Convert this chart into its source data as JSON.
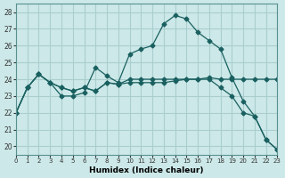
{
  "xlabel": "Humidex (Indice chaleur)",
  "ylabel": "",
  "xlim": [
    0,
    23
  ],
  "ylim": [
    19.5,
    28.5
  ],
  "yticks": [
    20,
    21,
    22,
    23,
    24,
    25,
    26,
    27,
    28
  ],
  "xticks": [
    0,
    1,
    2,
    3,
    4,
    5,
    6,
    7,
    8,
    9,
    10,
    11,
    12,
    13,
    14,
    15,
    16,
    17,
    18,
    19,
    20,
    21,
    22,
    23
  ],
  "background_color": "#cce8e8",
  "grid_color": "#aacece",
  "line_color": "#1a6060",
  "lines": [
    [
      22.0,
      23.5,
      24.3,
      23.8,
      23.0,
      23.0,
      23.2,
      24.7,
      24.2,
      23.8,
      25.5,
      25.8,
      26.0,
      27.3,
      27.8,
      27.6,
      26.8,
      26.3,
      25.8,
      24.1,
      22.7,
      21.8,
      20.4,
      19.8
    ],
    [
      22.0,
      23.5,
      24.3,
      23.8,
      23.5,
      23.3,
      23.5,
      23.3,
      23.8,
      23.7,
      23.8,
      23.8,
      23.8,
      23.8,
      23.9,
      24.0,
      24.0,
      24.1,
      24.0,
      24.0,
      24.0,
      24.0,
      24.0,
      24.0
    ],
    [
      22.0,
      23.5,
      24.3,
      23.8,
      23.5,
      23.3,
      23.5,
      23.3,
      23.8,
      23.7,
      24.0,
      24.0,
      24.0,
      24.0,
      24.0,
      24.0,
      24.0,
      24.0,
      23.5,
      23.0,
      22.0,
      21.8,
      20.4,
      19.8
    ]
  ]
}
